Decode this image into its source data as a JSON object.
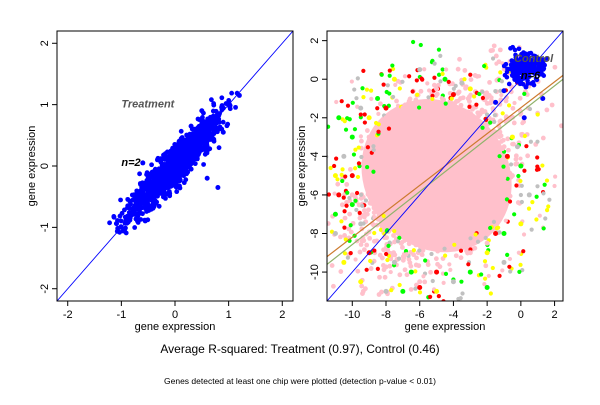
{
  "summary": "Average R-squared: Treatment (0.97), Control (0.46)",
  "footnote": "Genes detected at least one chip were plotted (detection p-value < 0.01)",
  "chart_data": [
    {
      "type": "scatter",
      "title": "",
      "xlabel": "gene expression",
      "ylabel": "gene expression",
      "xlim": [
        -2.2,
        2.2
      ],
      "ylim": [
        -2.2,
        2.2
      ],
      "xticks": [
        -2,
        -1,
        0,
        1,
        2
      ],
      "yticks": [
        -2,
        -1,
        0,
        1,
        2
      ],
      "grid": false,
      "annotations": [
        {
          "text": "Treatment",
          "x": -1.0,
          "y": 0.95
        },
        {
          "text": "n=2",
          "x": -1.0,
          "y": 0.0
        }
      ],
      "reference_line": {
        "slope": 1,
        "intercept": 0,
        "color": "#0000ff"
      },
      "series": [
        {
          "color": "#0000ff",
          "points": [
            [
              -1.0,
              -1.0
            ],
            [
              -0.8,
              -0.75
            ],
            [
              -0.6,
              -0.55
            ],
            [
              -0.4,
              -0.4
            ],
            [
              -0.2,
              -0.15
            ],
            [
              0.0,
              0.0
            ],
            [
              0.2,
              0.25
            ],
            [
              0.4,
              0.35
            ],
            [
              0.6,
              0.6
            ],
            [
              0.8,
              0.85
            ],
            [
              1.0,
              1.0
            ],
            [
              1.2,
              1.15
            ],
            [
              -0.5,
              -0.2
            ],
            [
              -0.3,
              0.1
            ],
            [
              0.1,
              0.4
            ],
            [
              0.3,
              0.65
            ],
            [
              0.5,
              0.9
            ],
            [
              -0.1,
              -0.45
            ],
            [
              0.3,
              -0.05
            ],
            [
              0.6,
              0.25
            ],
            [
              0.9,
              0.55
            ],
            [
              -0.7,
              -0.85
            ],
            [
              0.8,
              -0.35
            ],
            [
              0.6,
              -0.2
            ],
            [
              -0.6,
              0.05
            ],
            [
              0.25,
              0.5
            ]
          ]
        }
      ]
    },
    {
      "type": "scatter",
      "title": "",
      "xlabel": "gene expression",
      "ylabel": "gene expression",
      "xlim": [
        -11.5,
        2.5
      ],
      "ylim": [
        -11.5,
        2.5
      ],
      "xticks": [
        -10,
        -8,
        -6,
        -4,
        -2,
        0,
        2
      ],
      "yticks": [
        -10,
        -8,
        -6,
        -4,
        -2,
        0,
        2
      ],
      "grid": false,
      "annotations": [
        {
          "text": "Control",
          "x": -0.4,
          "y": 0.9
        },
        {
          "text": "n=6",
          "x": 0.0,
          "y": 0.0
        }
      ],
      "reference_line": {
        "slope": 1,
        "intercept": 0,
        "color": "#0000ff"
      },
      "fit_lines": [
        {
          "color": "#cc7a2e",
          "x": [
            -11.5,
            2.5
          ],
          "y": [
            -9.2,
            0.2
          ]
        },
        {
          "color": "#8fb26a",
          "x": [
            -11.5,
            2.5
          ],
          "y": [
            -9.6,
            0.0
          ]
        }
      ],
      "blob": {
        "color": "#ffc0cb",
        "center": [
          -5.0,
          -5.0
        ],
        "extent": [
          [
            -10.5,
            -10.0
          ],
          [
            0.5,
            0.8
          ]
        ]
      },
      "series": [
        {
          "color": "#ffc0cb",
          "points": [
            [
              -9.0,
              -3.0
            ],
            [
              -3.0,
              -9.0
            ],
            [
              -8.0,
              -2.0
            ],
            [
              -2.0,
              -8.5
            ],
            [
              -10.0,
              -6.0
            ],
            [
              -6.0,
              -10.5
            ],
            [
              -7.0,
              -1.5
            ],
            [
              -1.5,
              -7.0
            ],
            [
              -5.0,
              -0.5
            ],
            [
              -0.5,
              -5.0
            ]
          ]
        },
        {
          "color": "#c0c0c0",
          "points": [
            [
              -10.5,
              -4.0
            ],
            [
              -4.0,
              -10.5
            ],
            [
              -9.5,
              -1.5
            ],
            [
              -1.0,
              -9.5
            ],
            [
              -11.0,
              -8.0
            ],
            [
              -8.0,
              -11.0
            ],
            [
              -6.0,
              0.5
            ],
            [
              0.5,
              -6.0
            ],
            [
              -3.5,
              -0.2
            ],
            [
              -0.2,
              -3.5
            ],
            [
              -7.5,
              -9.5
            ],
            [
              -9.5,
              -7.5
            ]
          ]
        },
        {
          "color": "#00ff00",
          "points": [
            [
              -10.0,
              -3.0
            ],
            [
              -3.0,
              -10.0
            ],
            [
              -11.0,
              -7.0
            ],
            [
              -7.0,
              -11.0
            ],
            [
              -8.5,
              -1.0
            ],
            [
              -1.0,
              -8.0
            ],
            [
              -4.5,
              0.0
            ],
            [
              0.0,
              -4.5
            ],
            [
              -2.0,
              -10.8
            ],
            [
              -10.8,
              -2.0
            ],
            [
              -6.5,
              -10.0
            ],
            [
              -10.0,
              -6.5
            ]
          ]
        },
        {
          "color": "#ffff00",
          "points": [
            [
              -9.0,
              -2.0
            ],
            [
              -2.0,
              -9.0
            ],
            [
              -11.0,
              -5.0
            ],
            [
              -5.0,
              -11.0
            ],
            [
              -7.5,
              0.0
            ],
            [
              0.0,
              -7.5
            ],
            [
              -3.0,
              -0.5
            ],
            [
              -0.5,
              -3.0
            ],
            [
              -10.5,
              -9.5
            ],
            [
              -9.5,
              -10.5
            ]
          ]
        },
        {
          "color": "#ff0000",
          "points": [
            [
              -10.0,
              -5.0
            ],
            [
              -5.0,
              -10.0
            ],
            [
              -8.0,
              -1.5
            ],
            [
              -1.5,
              -8.0
            ],
            [
              -6.0,
              -10.8
            ],
            [
              -10.8,
              -6.0
            ],
            [
              -4.0,
              -0.8
            ],
            [
              -0.8,
              -4.0
            ],
            [
              -9.0,
              -9.0
            ]
          ]
        },
        {
          "color": "#0000ff",
          "points": [
            [
              0.0,
              0.0
            ],
            [
              0.5,
              0.5
            ],
            [
              1.0,
              1.0
            ],
            [
              -0.5,
              0.2
            ],
            [
              0.3,
              -0.4
            ],
            [
              1.2,
              0.3
            ],
            [
              -1.0,
              -0.6
            ],
            [
              0.8,
              1.2
            ],
            [
              -0.2,
              0.9
            ],
            [
              1.3,
              -1.0
            ],
            [
              0.2,
              -2.0
            ],
            [
              -1.5,
              -1.2
            ]
          ]
        }
      ]
    }
  ]
}
